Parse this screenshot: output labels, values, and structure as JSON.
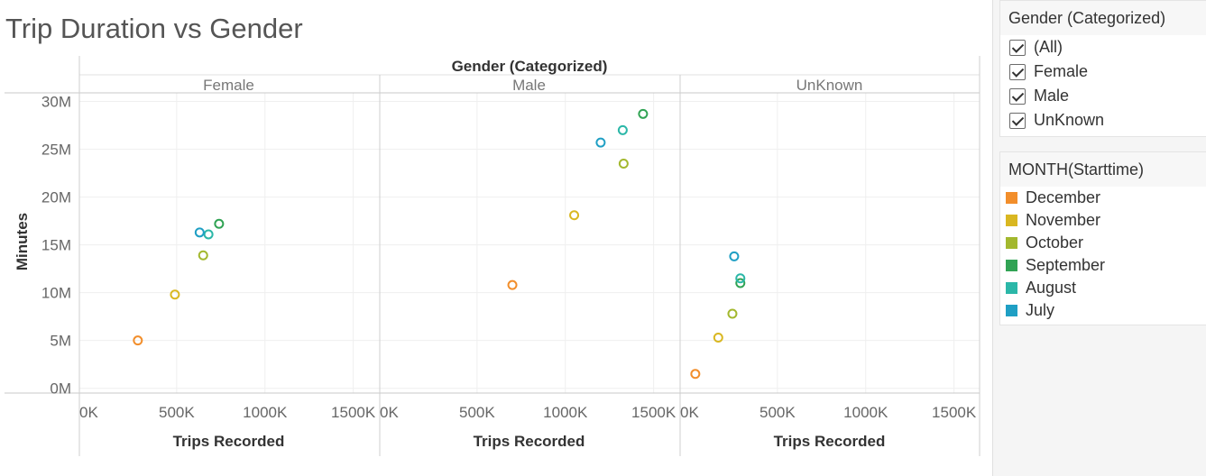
{
  "title": "Trip Duration vs Gender",
  "chart_data": {
    "type": "scatter",
    "column_header": "Gender (Categorized)",
    "panels": [
      "Female",
      "Male",
      "UnKnown"
    ],
    "xlabel": "Trips Recorded",
    "ylabel": "Minutes",
    "x_ticks": [
      "0K",
      "500K",
      "1000K",
      "1500K"
    ],
    "y_ticks": [
      "0M",
      "5M",
      "10M",
      "15M",
      "20M",
      "25M",
      "30M"
    ],
    "xlim": [
      0,
      1500
    ],
    "ylim": [
      0,
      30
    ],
    "grid": true,
    "series": [
      {
        "name": "December",
        "color": "#f28e2b",
        "points": [
          {
            "panel": "Female",
            "x": 280,
            "y": 5
          },
          {
            "panel": "Male",
            "x": 700,
            "y": 10.8
          },
          {
            "panel": "UnKnown",
            "x": 35,
            "y": 1.5
          }
        ]
      },
      {
        "name": "November",
        "color": "#d9b721",
        "points": [
          {
            "panel": "Female",
            "x": 490,
            "y": 9.8
          },
          {
            "panel": "Male",
            "x": 1050,
            "y": 18.1
          },
          {
            "panel": "UnKnown",
            "x": 165,
            "y": 5.3
          }
        ]
      },
      {
        "name": "October",
        "color": "#a3b82e",
        "points": [
          {
            "panel": "Female",
            "x": 650,
            "y": 13.9
          },
          {
            "panel": "Male",
            "x": 1330,
            "y": 23.5
          },
          {
            "panel": "UnKnown",
            "x": 245,
            "y": 7.8
          }
        ]
      },
      {
        "name": "September",
        "color": "#31a354",
        "points": [
          {
            "panel": "Female",
            "x": 740,
            "y": 17.2
          },
          {
            "panel": "Male",
            "x": 1440,
            "y": 28.7
          },
          {
            "panel": "UnKnown",
            "x": 290,
            "y": 11
          }
        ]
      },
      {
        "name": "August",
        "color": "#2bb7a8",
        "points": [
          {
            "panel": "Female",
            "x": 680,
            "y": 16.1
          },
          {
            "panel": "Male",
            "x": 1325,
            "y": 27
          },
          {
            "panel": "UnKnown",
            "x": 290,
            "y": 11.5
          }
        ]
      },
      {
        "name": "July",
        "color": "#1f9fc4",
        "points": [
          {
            "panel": "Female",
            "x": 630,
            "y": 16.3
          },
          {
            "panel": "Male",
            "x": 1200,
            "y": 25.7
          },
          {
            "panel": "UnKnown",
            "x": 255,
            "y": 13.8
          }
        ]
      }
    ]
  },
  "filter": {
    "title": "Gender (Categorized)",
    "items": [
      "(All)",
      "Female",
      "Male",
      "UnKnown"
    ]
  },
  "legend": {
    "title": "MONTH(Starttime)",
    "items": [
      {
        "label": "December",
        "color": "#f28e2b"
      },
      {
        "label": "November",
        "color": "#d9b721"
      },
      {
        "label": "October",
        "color": "#a3b82e"
      },
      {
        "label": "September",
        "color": "#31a354"
      },
      {
        "label": "August",
        "color": "#2bb7a8"
      },
      {
        "label": "July",
        "color": "#1f9fc4"
      }
    ]
  }
}
